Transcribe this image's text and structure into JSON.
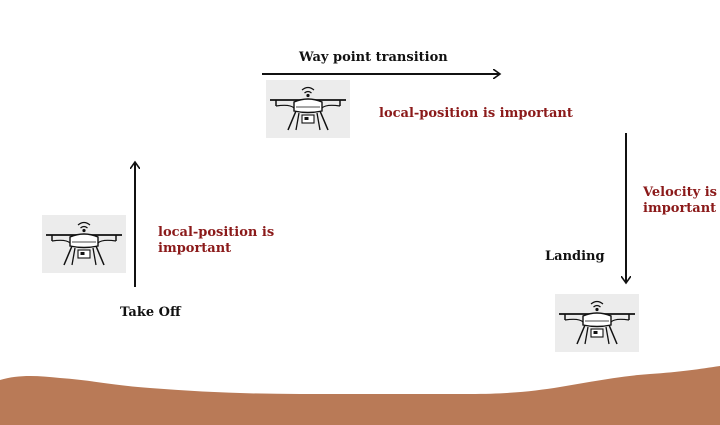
{
  "labels": {
    "takeoff": "Take Off",
    "waypoint": "Way point transition",
    "landing": "Landing"
  },
  "notes": {
    "takeoff_line1": "local-position is",
    "takeoff_line2": "important",
    "waypoint": "local-position is important",
    "landing_line1": "Velocity is",
    "landing_line2": "important"
  },
  "colors": {
    "note_text": "#8b1a1a",
    "ground": "#b97a57",
    "label_text": "#111111",
    "drone_bg": "#ececec"
  },
  "icons": [
    "drone-icon",
    "wifi-signal-icon",
    "camera-icon"
  ]
}
